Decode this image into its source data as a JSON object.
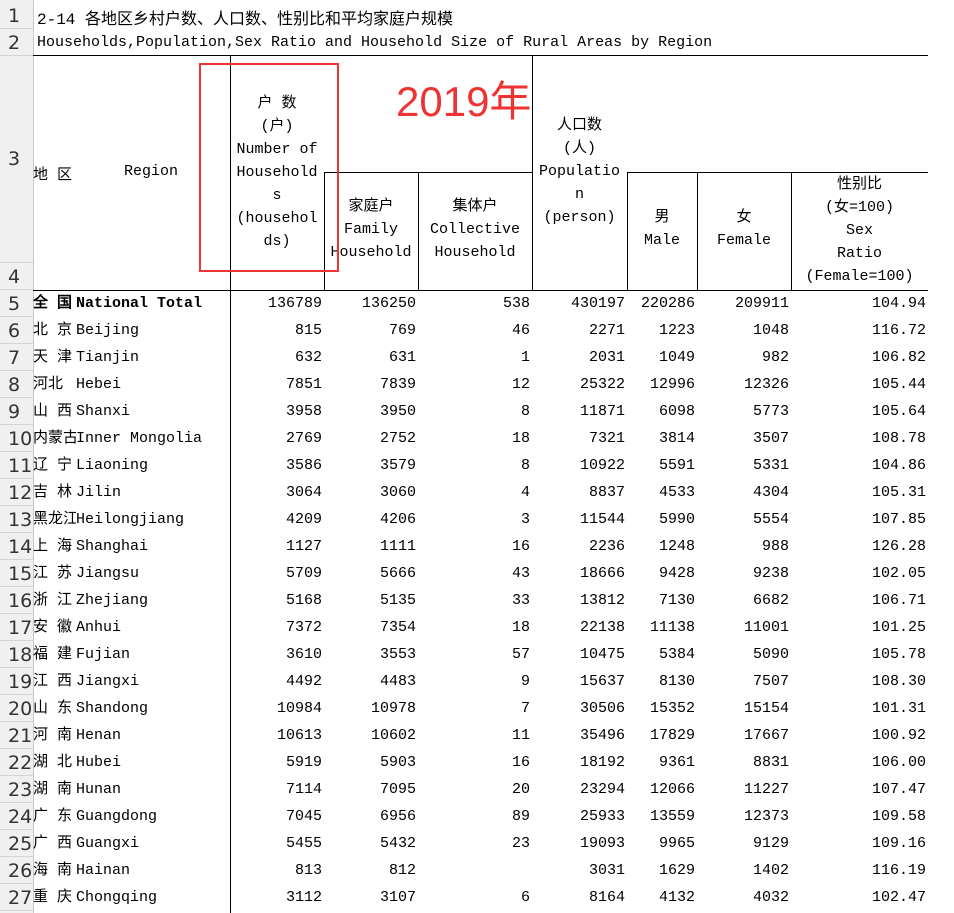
{
  "title_zh": "2-14 各地区乡村户数、人口数、性别比和平均家庭户规模",
  "title_en": "Households,Population,Sex Ratio and Household Size of Rural Areas by Region",
  "annotation": {
    "year_label": "2019年",
    "color": "#ee3333"
  },
  "row_numbers": [
    "1",
    "2",
    "3",
    "4",
    "5",
    "6",
    "7",
    "8",
    "9",
    "10",
    "11",
    "12",
    "13",
    "14",
    "15",
    "16",
    "17",
    "18",
    "19",
    "20",
    "21",
    "22",
    "23",
    "24",
    "25",
    "26",
    "27"
  ],
  "headers": {
    "region_zh": "地 区",
    "region_en": "Region",
    "households": [
      "户 数",
      "(户)",
      "Number of",
      "Household",
      "s",
      "(househol",
      "ds)"
    ],
    "family": [
      "家庭户",
      "Family",
      "Household"
    ],
    "collective": [
      "集体户",
      "Collective",
      "Household"
    ],
    "population": [
      "人口数",
      "(人)",
      "Populatio",
      "n",
      "(person)"
    ],
    "male": [
      "男",
      "Male"
    ],
    "female": [
      "女",
      "Female"
    ],
    "sex_ratio": [
      "性别比",
      "(女=100)",
      "Sex",
      "Ratio",
      "(Female=100)"
    ]
  },
  "rows": [
    {
      "zh": "全 国",
      "en": "National Total",
      "households": "136789",
      "family": "136250",
      "collective": "538",
      "population": "430197",
      "male": "220286",
      "female": "209911",
      "sex_ratio": "104.94"
    },
    {
      "zh": "北 京",
      "en": "Beijing",
      "households": "815",
      "family": "769",
      "collective": "46",
      "population": "2271",
      "male": "1223",
      "female": "1048",
      "sex_ratio": "116.72"
    },
    {
      "zh": "天 津",
      "en": "Tianjin",
      "households": "632",
      "family": "631",
      "collective": "1",
      "population": "2031",
      "male": "1049",
      "female": "982",
      "sex_ratio": "106.82"
    },
    {
      "zh": "河北",
      "en": "Hebei",
      "households": "7851",
      "family": "7839",
      "collective": "12",
      "population": "25322",
      "male": "12996",
      "female": "12326",
      "sex_ratio": "105.44"
    },
    {
      "zh": "山 西",
      "en": "Shanxi",
      "households": "3958",
      "family": "3950",
      "collective": "8",
      "population": "11871",
      "male": "6098",
      "female": "5773",
      "sex_ratio": "105.64"
    },
    {
      "zh": "内蒙古",
      "en": "Inner Mongolia",
      "households": "2769",
      "family": "2752",
      "collective": "18",
      "population": "7321",
      "male": "3814",
      "female": "3507",
      "sex_ratio": "108.78"
    },
    {
      "zh": "辽 宁",
      "en": "Liaoning",
      "households": "3586",
      "family": "3579",
      "collective": "8",
      "population": "10922",
      "male": "5591",
      "female": "5331",
      "sex_ratio": "104.86"
    },
    {
      "zh": "吉 林",
      "en": "Jilin",
      "households": "3064",
      "family": "3060",
      "collective": "4",
      "population": "8837",
      "male": "4533",
      "female": "4304",
      "sex_ratio": "105.31"
    },
    {
      "zh": "黑龙江",
      "en": "Heilongjiang",
      "households": "4209",
      "family": "4206",
      "collective": "3",
      "population": "11544",
      "male": "5990",
      "female": "5554",
      "sex_ratio": "107.85"
    },
    {
      "zh": "上 海",
      "en": "Shanghai",
      "households": "1127",
      "family": "1111",
      "collective": "16",
      "population": "2236",
      "male": "1248",
      "female": "988",
      "sex_ratio": "126.28"
    },
    {
      "zh": "江 苏",
      "en": "Jiangsu",
      "households": "5709",
      "family": "5666",
      "collective": "43",
      "population": "18666",
      "male": "9428",
      "female": "9238",
      "sex_ratio": "102.05"
    },
    {
      "zh": "浙 江",
      "en": "Zhejiang",
      "households": "5168",
      "family": "5135",
      "collective": "33",
      "population": "13812",
      "male": "7130",
      "female": "6682",
      "sex_ratio": "106.71"
    },
    {
      "zh": "安 徽",
      "en": "Anhui",
      "households": "7372",
      "family": "7354",
      "collective": "18",
      "population": "22138",
      "male": "11138",
      "female": "11001",
      "sex_ratio": "101.25"
    },
    {
      "zh": "福 建",
      "en": "Fujian",
      "households": "3610",
      "family": "3553",
      "collective": "57",
      "population": "10475",
      "male": "5384",
      "female": "5090",
      "sex_ratio": "105.78"
    },
    {
      "zh": "江 西",
      "en": "Jiangxi",
      "households": "4492",
      "family": "4483",
      "collective": "9",
      "population": "15637",
      "male": "8130",
      "female": "7507",
      "sex_ratio": "108.30"
    },
    {
      "zh": "山 东",
      "en": "Shandong",
      "households": "10984",
      "family": "10978",
      "collective": "7",
      "population": "30506",
      "male": "15352",
      "female": "15154",
      "sex_ratio": "101.31"
    },
    {
      "zh": "河 南",
      "en": "Henan",
      "households": "10613",
      "family": "10602",
      "collective": "11",
      "population": "35496",
      "male": "17829",
      "female": "17667",
      "sex_ratio": "100.92"
    },
    {
      "zh": "湖 北",
      "en": "Hubei",
      "households": "5919",
      "family": "5903",
      "collective": "16",
      "population": "18192",
      "male": "9361",
      "female": "8831",
      "sex_ratio": "106.00"
    },
    {
      "zh": "湖 南",
      "en": "Hunan",
      "households": "7114",
      "family": "7095",
      "collective": "20",
      "population": "23294",
      "male": "12066",
      "female": "11227",
      "sex_ratio": "107.47"
    },
    {
      "zh": "广 东",
      "en": "Guangdong",
      "households": "7045",
      "family": "6956",
      "collective": "89",
      "population": "25933",
      "male": "13559",
      "female": "12373",
      "sex_ratio": "109.58"
    },
    {
      "zh": "广 西",
      "en": "Guangxi",
      "households": "5455",
      "family": "5432",
      "collective": "23",
      "population": "19093",
      "male": "9965",
      "female": "9129",
      "sex_ratio": "109.16"
    },
    {
      "zh": "海 南",
      "en": "Hainan",
      "households": "813",
      "family": "812",
      "collective": "",
      "population": "3031",
      "male": "1629",
      "female": "1402",
      "sex_ratio": "116.19"
    },
    {
      "zh": "重 庆",
      "en": "Chongqing",
      "households": "3112",
      "family": "3107",
      "collective": "6",
      "population": "8164",
      "male": "4132",
      "female": "4032",
      "sex_ratio": "102.47"
    }
  ]
}
